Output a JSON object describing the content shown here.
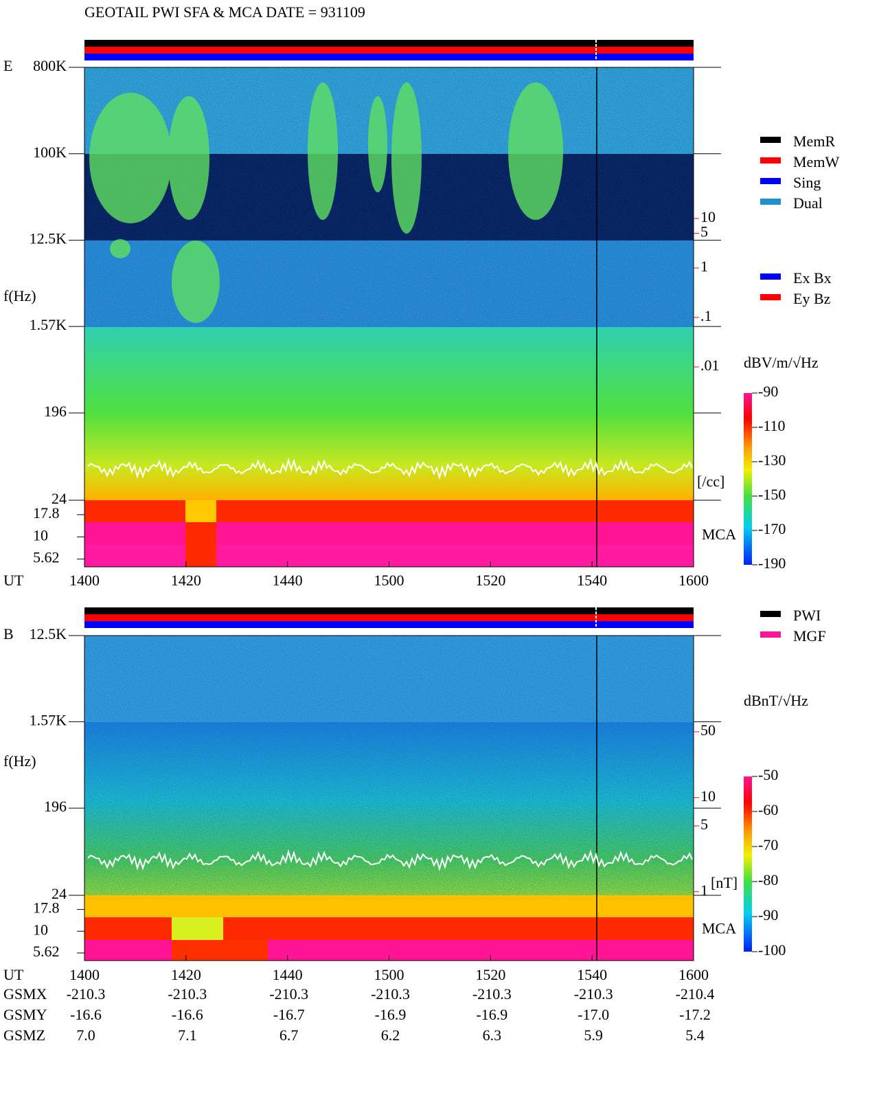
{
  "title": "GEOTAIL  PWI SFA & MCA   DATE = 931109",
  "chart_data": [
    {
      "type": "spectrogram",
      "panel_label": "E",
      "ylabel": "f(Hz)",
      "log_y": true,
      "ylim": [
        24,
        800000
      ],
      "yticks": [
        {
          "value": 800000,
          "label": "800K"
        },
        {
          "value": 100000,
          "label": "100K"
        },
        {
          "value": 12500,
          "label": "12.5K"
        },
        {
          "value": 1570,
          "label": "1.57K"
        },
        196,
        24
      ],
      "mca_ticks": [
        17.8,
        10,
        5.62
      ],
      "mca_label": "MCA",
      "xlabel": "UT",
      "xticks": [
        "1400",
        "1420",
        "1440",
        "1500",
        "1520",
        "1540",
        "1600"
      ],
      "colorbar_label": "dBV/m/√Hz",
      "clim": [
        -190,
        -90
      ],
      "cticks": [
        -90,
        -110,
        -130,
        -150,
        -170,
        -190
      ],
      "aux_ticks": [
        10,
        5,
        1,
        {
          "value": 0.1,
          "label": ".1"
        },
        {
          "value": 0.01,
          "label": ".01"
        }
      ],
      "aux_unit": "[/cc]",
      "aux_color": "#ff0000",
      "legends": [
        [
          {
            "name": "MemR",
            "color": "#000000"
          },
          {
            "name": "MemW",
            "color": "#ff0000"
          },
          {
            "name": "Sing",
            "color": "#0000ff"
          },
          {
            "name": "Dual",
            "color": "#1e90d0"
          }
        ],
        [
          {
            "name": "Ex Bx",
            "color": "#0000ff"
          },
          {
            "name": "Ey Bz",
            "color": "#ff0000"
          }
        ]
      ]
    },
    {
      "type": "spectrogram",
      "panel_label": "B",
      "ylabel": "f(Hz)",
      "log_y": true,
      "ylim": [
        24,
        12500
      ],
      "yticks": [
        {
          "value": 12500,
          "label": "12.5K"
        },
        {
          "value": 1570,
          "label": "1.57K"
        },
        196,
        24
      ],
      "mca_ticks": [
        17.8,
        10,
        5.62
      ],
      "mca_label": "MCA",
      "xlabel": "UT",
      "xticks": [
        "1400",
        "1420",
        "1440",
        "1500",
        "1520",
        "1540",
        "1600"
      ],
      "colorbar_label": "dBnT/√Hz",
      "clim": [
        -100,
        -50
      ],
      "cticks": [
        -50,
        -60,
        -70,
        -80,
        -90,
        -100
      ],
      "aux_ticks": [
        50,
        10,
        5,
        1
      ],
      "aux_unit": "[nT]",
      "aux_color": "#ff0000",
      "legends": [
        [
          {
            "name": "PWI",
            "color": "#000000"
          },
          {
            "name": "MGF",
            "color": "#ff1493"
          }
        ]
      ]
    }
  ],
  "orbit": [
    {
      "label": "GSMX",
      "values": [
        "-210.3",
        "-210.3",
        "-210.3",
        "-210.3",
        "-210.3",
        "-210.3",
        "-210.4"
      ]
    },
    {
      "label": "GSMY",
      "values": [
        "-16.6",
        "-16.6",
        "-16.7",
        "-16.9",
        "-16.9",
        "-17.0",
        "-17.2"
      ]
    },
    {
      "label": "GSMZ",
      "values": [
        "7.0",
        "7.1",
        "6.7",
        "6.2",
        "6.3",
        "5.9",
        "5.4"
      ]
    }
  ]
}
